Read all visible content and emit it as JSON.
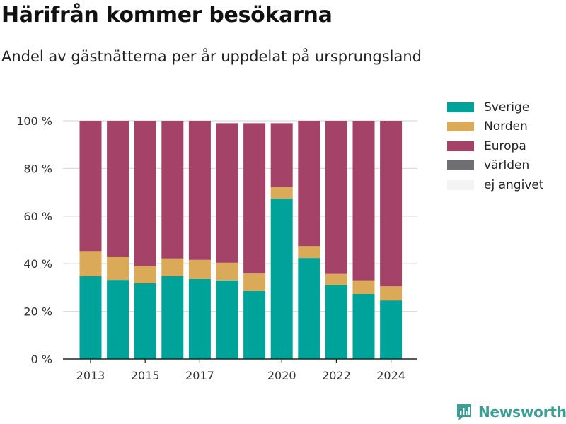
{
  "title": "Härifrån kommer besökarna",
  "subtitle": "Andel av gästnätterna per år uppdelat på ursprungsland",
  "brand": "Newsworthy",
  "chart_data": {
    "type": "bar",
    "stacked": true,
    "categories": [
      2013,
      2014,
      2015,
      2016,
      2017,
      2018,
      2019,
      2020,
      2021,
      2022,
      2023,
      2024
    ],
    "x_tick_labels": [
      "2013",
      "2015",
      "2017",
      "2020",
      "2022",
      "2024"
    ],
    "y_ticks": [
      0,
      20,
      40,
      60,
      80,
      100
    ],
    "y_tick_labels": [
      "0 %",
      "20 %",
      "40 %",
      "60 %",
      "80 %",
      "100 %"
    ],
    "ylim": [
      0,
      100
    ],
    "grid": true,
    "legend_position": "top-right",
    "series": [
      {
        "name": "Sverige",
        "color": "#00a399",
        "values": [
          34.8,
          33.2,
          31.8,
          34.8,
          33.6,
          33,
          28.5,
          67.3,
          42.4,
          31,
          27.3,
          24.6
        ]
      },
      {
        "name": "Norden",
        "color": "#daaa58",
        "values": [
          10.5,
          9.8,
          7.2,
          7.4,
          8.0,
          7.4,
          7.4,
          4.9,
          5.0,
          4.7,
          5.7,
          5.9
        ]
      },
      {
        "name": "Europa",
        "color": "#a44268",
        "values": [
          54.7,
          57.0,
          61.0,
          57.8,
          58.4,
          58.6,
          63.1,
          26.8,
          52.6,
          64.3,
          67.0,
          69.5
        ]
      },
      {
        "name": "världen",
        "color": "#6e6e73",
        "values": [
          0,
          0,
          0,
          0,
          0,
          0,
          0,
          0,
          0,
          0,
          0,
          0
        ]
      },
      {
        "name": "ej angivet",
        "color": "#f4f4f4",
        "values": [
          0,
          0,
          0,
          0,
          0,
          0,
          0,
          0,
          0,
          0,
          0,
          0
        ]
      }
    ]
  }
}
